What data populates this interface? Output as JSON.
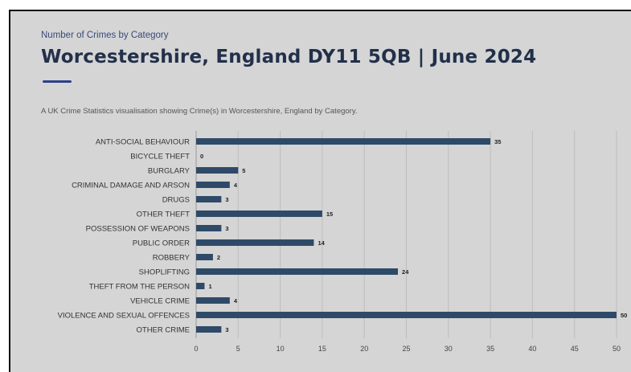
{
  "header": {
    "subtitle": "Number of Crimes by Category",
    "title": "Worcestershire, England DY11 5QB | June 2024",
    "description": "A UK Crime Statistics visualisation showing Crime(s) in Worcestershire, England by Category."
  },
  "colors": {
    "bar": "#2f4a68",
    "grid": "#bdbdbd",
    "background": "#d5d5d5"
  },
  "chart_data": {
    "type": "bar",
    "orientation": "horizontal",
    "categories": [
      "ANTI-SOCIAL BEHAVIOUR",
      "BICYCLE THEFT",
      "BURGLARY",
      "CRIMINAL DAMAGE AND ARSON",
      "DRUGS",
      "OTHER THEFT",
      "POSSESSION OF WEAPONS",
      "PUBLIC ORDER",
      "ROBBERY",
      "SHOPLIFTING",
      "THEFT FROM THE PERSON",
      "VEHICLE CRIME",
      "VIOLENCE AND SEXUAL OFFENCES",
      "OTHER CRIME"
    ],
    "values": [
      35,
      0,
      5,
      4,
      3,
      15,
      3,
      14,
      2,
      24,
      1,
      4,
      50,
      3
    ],
    "xlim": [
      0,
      50
    ],
    "xticks": [
      0,
      5,
      10,
      15,
      20,
      25,
      30,
      35,
      40,
      45,
      50
    ],
    "data_labels": true,
    "grid": true,
    "legend": "none"
  }
}
